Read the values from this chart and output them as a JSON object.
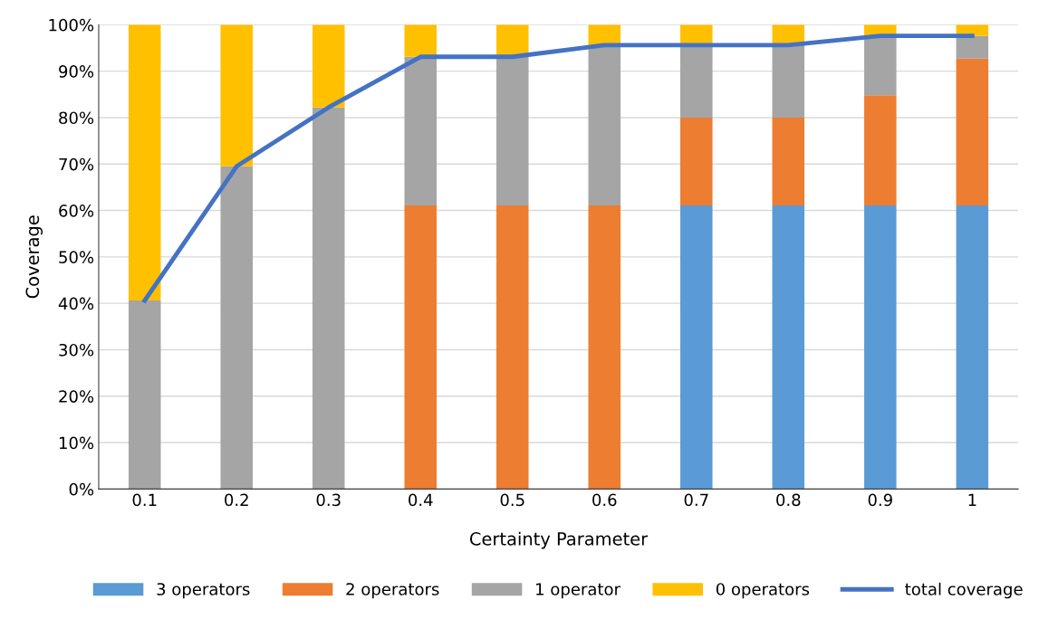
{
  "chart_data": {
    "type": "bar",
    "stacked": true,
    "xlabel": "Certainty Parameter",
    "ylabel": "Coverage",
    "categories": [
      "0.1",
      "0.2",
      "0.3",
      "0.4",
      "0.5",
      "0.6",
      "0.7",
      "0.8",
      "0.9",
      "1"
    ],
    "series": [
      {
        "name": "3 operators",
        "color": "#5b9bd5",
        "values": [
          0,
          0,
          0,
          0,
          0,
          0,
          61.1,
          61.1,
          61.1,
          61.1
        ]
      },
      {
        "name": "2 operators",
        "color": "#ed7d31",
        "values": [
          0,
          0,
          0,
          61.1,
          61.1,
          61.1,
          18.9,
          18.9,
          23.7,
          31.6
        ]
      },
      {
        "name": "1 operator",
        "color": "#a5a5a5",
        "values": [
          40.6,
          69.5,
          82.2,
          32.0,
          32.0,
          34.5,
          15.6,
          15.6,
          12.8,
          4.9
        ]
      },
      {
        "name": "0 operators",
        "color": "#ffc000",
        "values": [
          59.4,
          30.5,
          17.8,
          6.9,
          6.9,
          4.4,
          4.4,
          4.4,
          2.4,
          2.4
        ]
      },
      {
        "name": "total coverage",
        "type": "line",
        "color": "#4472c4",
        "values": [
          40.6,
          69.5,
          82.2,
          93.1,
          93.1,
          95.6,
          95.6,
          95.6,
          97.6,
          97.6
        ]
      }
    ],
    "ylim": [
      0,
      100
    ],
    "yticks": [
      {
        "value": 0,
        "label": "0%"
      },
      {
        "value": 10,
        "label": "10%"
      },
      {
        "value": 20,
        "label": "20%"
      },
      {
        "value": 30,
        "label": "30%"
      },
      {
        "value": 40,
        "label": "40%"
      },
      {
        "value": 50,
        "label": "50%"
      },
      {
        "value": 60,
        "label": "60%"
      },
      {
        "value": 70,
        "label": "70%"
      },
      {
        "value": 80,
        "label": "80%"
      },
      {
        "value": 90,
        "label": "90%"
      },
      {
        "value": 100,
        "label": "100%"
      }
    ],
    "grid": "y",
    "legend": "bottom",
    "marker": "none",
    "line_style": "solid"
  }
}
